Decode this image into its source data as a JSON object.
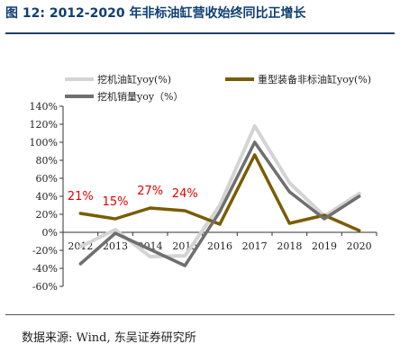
{
  "header": {
    "title": "图 12:  2012-2020 年非标油缸营收始终同比正增长"
  },
  "footer": {
    "source": "数据来源:  Wind,  东吴证券研究所"
  },
  "chart_data": {
    "type": "line",
    "categories": [
      "2012",
      "2013",
      "2014",
      "2015",
      "2016",
      "2017",
      "2018",
      "2019",
      "2020"
    ],
    "ylim": [
      -60,
      140
    ],
    "yticks": [
      -60,
      -40,
      -20,
      0,
      20,
      40,
      60,
      80,
      100,
      120,
      140
    ],
    "ytick_labels": [
      "-60%",
      "-40%",
      "-20%",
      "0%",
      "20%",
      "40%",
      "60%",
      "80%",
      "100%",
      "120%",
      "140%"
    ],
    "grid": false,
    "legend_position": "top",
    "series": [
      {
        "name": "挖机油缸yoy(%)",
        "color": "#d4d4d4",
        "values": [
          -16,
          3,
          -27,
          -26,
          30,
          118,
          55,
          18,
          43
        ]
      },
      {
        "name": "重型装备非标油缸yoy(%)",
        "color": "#7a5c00",
        "values": [
          21,
          15,
          27,
          24,
          9,
          86,
          10,
          19,
          2
        ]
      },
      {
        "name": "挖机销量yoy（%）",
        "color": "#6f6f6f",
        "values": [
          -35,
          -1,
          -19,
          -37,
          23,
          100,
          45,
          15,
          40
        ]
      }
    ],
    "annotations": [
      {
        "text": "21%",
        "x": "2012",
        "y": 21,
        "color": "#e00000"
      },
      {
        "text": "15%",
        "x": "2013",
        "y": 15,
        "color": "#e00000"
      },
      {
        "text": "27%",
        "x": "2014",
        "y": 27,
        "color": "#e00000"
      },
      {
        "text": "24%",
        "x": "2015",
        "y": 24,
        "color": "#e00000"
      }
    ]
  }
}
